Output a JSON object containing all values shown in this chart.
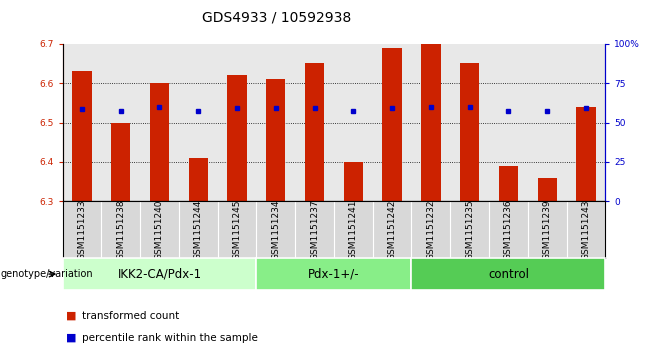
{
  "title": "GDS4933 / 10592938",
  "samples": [
    "GSM1151233",
    "GSM1151238",
    "GSM1151240",
    "GSM1151244",
    "GSM1151245",
    "GSM1151234",
    "GSM1151237",
    "GSM1151241",
    "GSM1151242",
    "GSM1151232",
    "GSM1151235",
    "GSM1151236",
    "GSM1151239",
    "GSM1151243"
  ],
  "bar_values": [
    6.63,
    6.5,
    6.6,
    6.41,
    6.62,
    6.61,
    6.65,
    6.4,
    6.69,
    6.7,
    6.65,
    6.39,
    6.36,
    6.54
  ],
  "percentile_values": [
    6.535,
    6.53,
    6.54,
    6.53,
    6.538,
    6.538,
    6.538,
    6.53,
    6.538,
    6.54,
    6.54,
    6.53,
    6.53,
    6.538
  ],
  "ymin": 6.3,
  "ymax": 6.7,
  "y2min": 0,
  "y2max": 100,
  "yticks": [
    6.3,
    6.4,
    6.5,
    6.6,
    6.7
  ],
  "y2ticks": [
    0,
    25,
    50,
    75,
    100
  ],
  "y2tick_labels": [
    "0",
    "25",
    "50",
    "75",
    "100%"
  ],
  "dotted_lines": [
    6.4,
    6.5,
    6.6
  ],
  "groups": [
    {
      "label": "IKK2-CA/Pdx-1",
      "start": 0,
      "end": 5,
      "color": "#ccffcc"
    },
    {
      "label": "Pdx-1+/-",
      "start": 5,
      "end": 9,
      "color": "#88ee88"
    },
    {
      "label": "control",
      "start": 9,
      "end": 14,
      "color": "#55cc55"
    }
  ],
  "bar_color": "#cc2200",
  "percentile_color": "#0000cc",
  "bar_width": 0.5,
  "genotype_label": "genotype/variation",
  "legend_bar_label": "transformed count",
  "legend_dot_label": "percentile rank within the sample",
  "title_fontsize": 10,
  "tick_fontsize": 6.5,
  "label_fontsize": 8,
  "group_label_fontsize": 8.5,
  "plot_bg_color": "#e8e8e8",
  "axis_color_left": "#cc2200",
  "axis_color_right": "#0000cc"
}
